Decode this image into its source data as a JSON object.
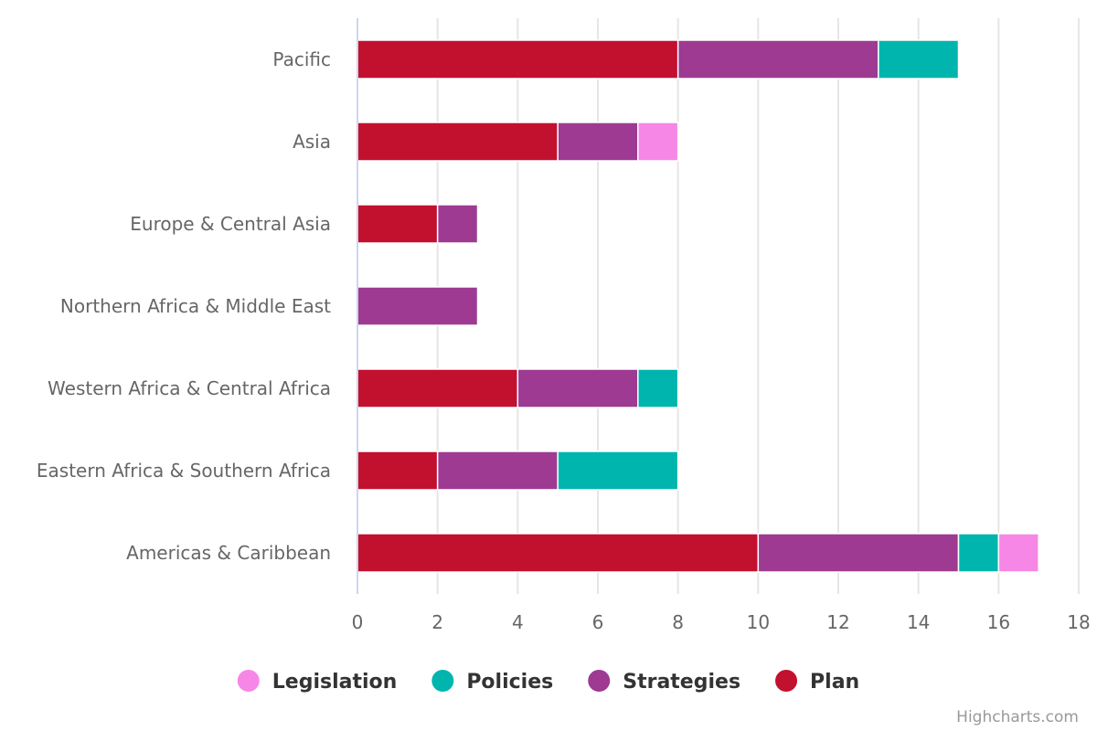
{
  "chart_data": {
    "type": "bar",
    "stacked": true,
    "orientation": "horizontal",
    "categories": [
      "Pacific",
      "Asia",
      "Europe & Central Asia",
      "Northern Africa & Middle East",
      "Western Africa & Central Africa",
      "Eastern Africa & Southern Africa",
      "Americas & Caribbean"
    ],
    "series": [
      {
        "name": "Legislation",
        "color": "#f787e6",
        "values": [
          0,
          1,
          0,
          0,
          0,
          0,
          1
        ]
      },
      {
        "name": "Policies",
        "color": "#00b5ad",
        "values": [
          2,
          0,
          0,
          0,
          1,
          3,
          1
        ]
      },
      {
        "name": "Strategies",
        "color": "#9e3a92",
        "values": [
          5,
          2,
          1,
          3,
          3,
          3,
          5
        ]
      },
      {
        "name": "Plan",
        "color": "#c2102f",
        "values": [
          8,
          5,
          2,
          0,
          4,
          2,
          10
        ]
      }
    ],
    "xlim": [
      0,
      18
    ],
    "ticks": [
      0,
      2,
      4,
      6,
      8,
      10,
      12,
      14,
      16,
      18
    ],
    "grid": true,
    "legend_position": "bottom",
    "credit": "Highcharts.com"
  }
}
